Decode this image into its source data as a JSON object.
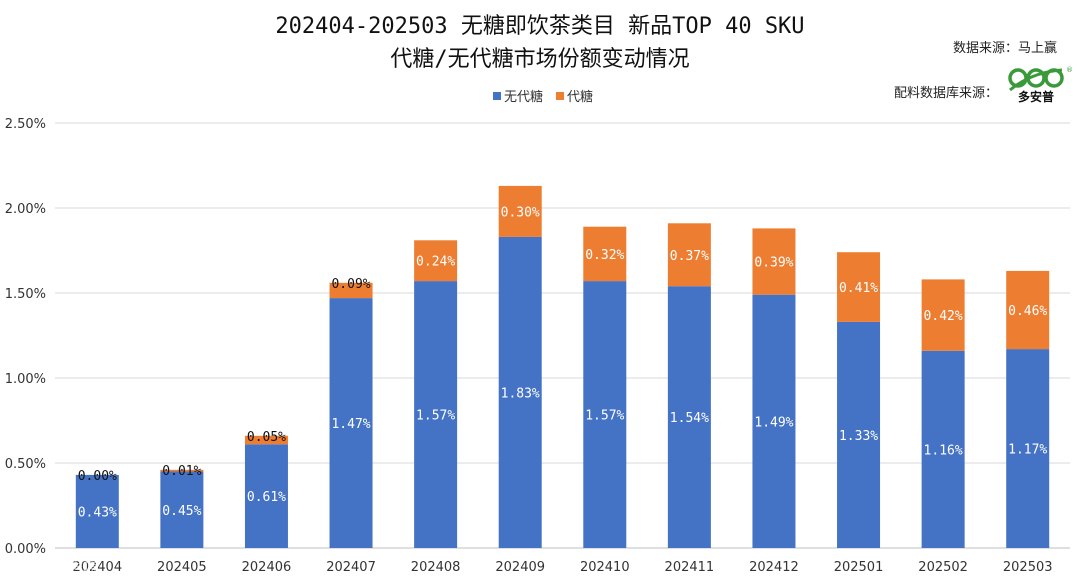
{
  "chart_data": {
    "type": "bar",
    "stacked": true,
    "title_line1": "202404-202503 无糖即饮茶类目 新品TOP 40 SKU",
    "title_line2": "代糖/无代糖市场份额变动情况",
    "categories": [
      "202404",
      "202405",
      "202406",
      "202407",
      "202408",
      "202409",
      "202410",
      "202411",
      "202412",
      "202501",
      "202502",
      "202503"
    ],
    "series": [
      {
        "name": "无代糖",
        "color": "#4472C4",
        "label_color": "#ffffff",
        "values": [
          0.43,
          0.45,
          0.61,
          1.47,
          1.57,
          1.83,
          1.57,
          1.54,
          1.49,
          1.33,
          1.16,
          1.17
        ],
        "labels": [
          "0.43%",
          "0.45%",
          "0.61%",
          "1.47%",
          "1.57%",
          "1.83%",
          "1.57%",
          "1.54%",
          "1.49%",
          "1.33%",
          "1.16%",
          "1.17%"
        ]
      },
      {
        "name": "代糖",
        "color": "#ED7D31",
        "label_color": "#ffffff",
        "values": [
          0.0,
          0.01,
          0.05,
          0.09,
          0.24,
          0.3,
          0.32,
          0.37,
          0.39,
          0.41,
          0.42,
          0.46
        ],
        "labels": [
          "0.00%",
          "0.01%",
          "0.05%",
          "0.09%",
          "0.24%",
          "0.30%",
          "0.32%",
          "0.37%",
          "0.39%",
          "0.41%",
          "0.42%",
          "0.46%"
        ]
      }
    ],
    "ylim": [
      0,
      2.5
    ],
    "yticks": [
      0,
      0.5,
      1.0,
      1.5,
      2.0,
      2.5
    ],
    "ytick_labels": [
      "0.00%",
      "0.50%",
      "1.00%",
      "1.50%",
      "2.00%",
      "2.50%"
    ],
    "grid": true,
    "legend_position": "top-center"
  },
  "source": {
    "data_source": "数据来源：马上赢",
    "db_source": "配料数据库来源：",
    "logo_text": "多安普"
  },
  "watermark": "大数跨境",
  "colors": {
    "gridline": "#d9d9d9",
    "axis": "#bfbfbf",
    "logo_green": "#3a9a3a"
  }
}
